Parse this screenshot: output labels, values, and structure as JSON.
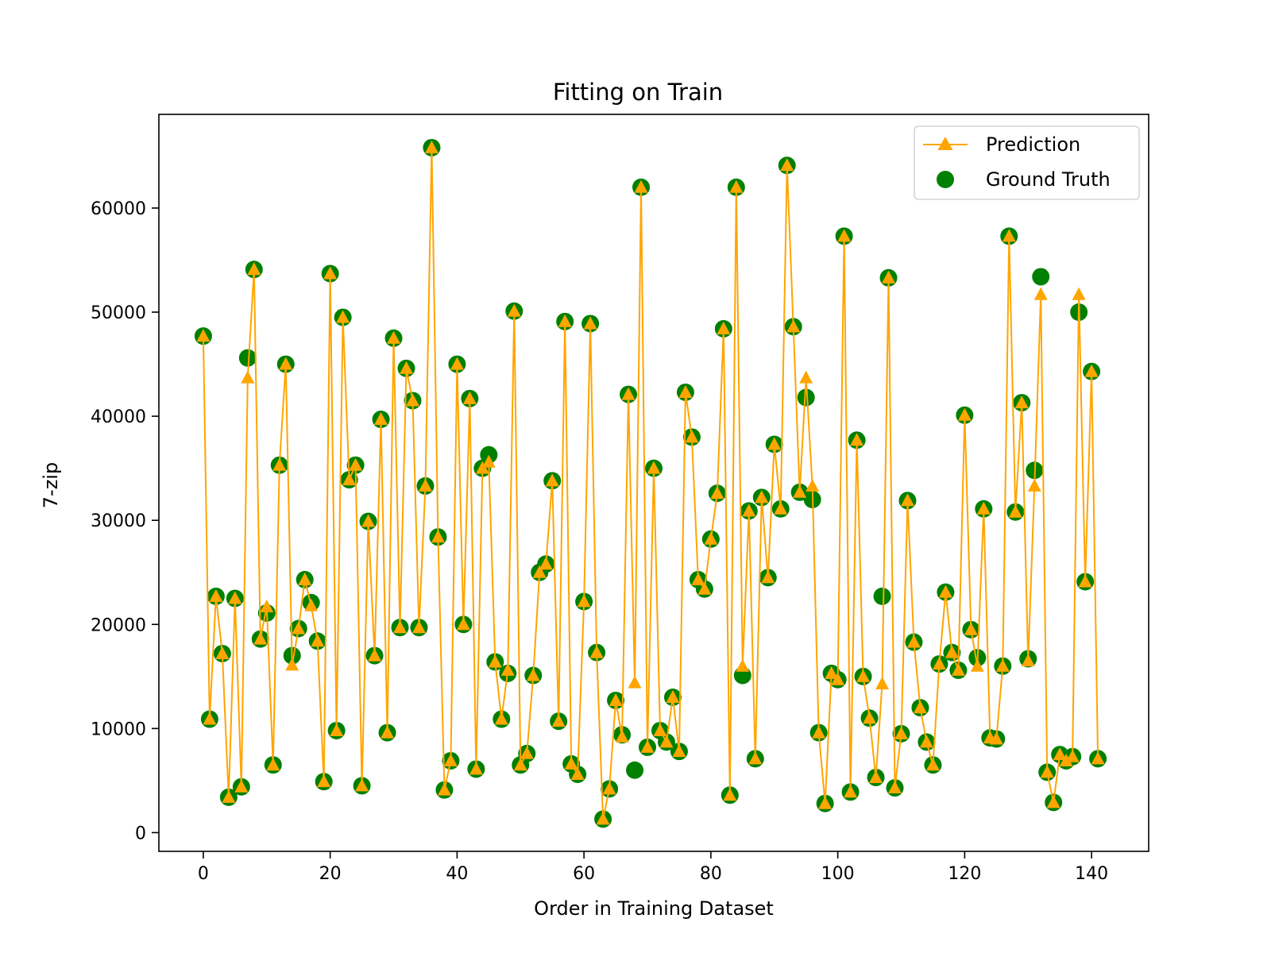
{
  "chart_data": {
    "type": "line",
    "title": "Fitting on Train",
    "xlabel": "Order in Training Dataset",
    "ylabel": "7-zip",
    "xlim": [
      -7,
      149
    ],
    "ylim": [
      -1800,
      69000
    ],
    "xticks": [
      0,
      20,
      40,
      60,
      80,
      100,
      120,
      140
    ],
    "yticks": [
      0,
      10000,
      20000,
      30000,
      40000,
      50000,
      60000
    ],
    "grid": false,
    "legend": "top-right",
    "series": [
      {
        "name": "Prediction",
        "style": "line-triangle",
        "color": "#ffa500",
        "values": [
          47700,
          10900,
          22700,
          17200,
          3400,
          22500,
          4400,
          43700,
          54100,
          18600,
          21700,
          6500,
          35300,
          45000,
          16100,
          19600,
          24300,
          21800,
          18400,
          4900,
          53700,
          9800,
          49500,
          33900,
          35300,
          4500,
          29900,
          17000,
          39700,
          9600,
          47500,
          19700,
          44600,
          41500,
          19700,
          33300,
          65800,
          28400,
          4100,
          6900,
          45000,
          20000,
          41700,
          6100,
          35000,
          35600,
          16400,
          10900,
          15600,
          50100,
          6500,
          7600,
          15100,
          25000,
          25800,
          33800,
          10700,
          49100,
          6600,
          5600,
          22200,
          48900,
          17300,
          1300,
          4200,
          12700,
          9200,
          42100,
          14400,
          62000,
          8200,
          35000,
          9800,
          8700,
          13000,
          7800,
          42300,
          38000,
          24300,
          23400,
          28200,
          32600,
          48400,
          3600,
          62000,
          16000,
          30900,
          7100,
          32200,
          24500,
          37300,
          31100,
          64100,
          48600,
          32700,
          43700,
          33300,
          9600,
          2800,
          15300,
          14700,
          57300,
          3900,
          37700,
          15000,
          11000,
          5300,
          14300,
          53300,
          4300,
          9500,
          31900,
          18300,
          12000,
          8700,
          6500,
          16200,
          23100,
          17300,
          15600,
          40100,
          19500,
          16000,
          31100,
          9100,
          9000,
          16000,
          57300,
          30800,
          41300,
          16500,
          33300,
          51700,
          5800,
          2900,
          7500,
          6900,
          7300,
          51700,
          24100,
          44300,
          7100
        ]
      },
      {
        "name": "Ground Truth",
        "style": "scatter-circle",
        "color": "#008000",
        "values": [
          47700,
          10900,
          22700,
          17200,
          3400,
          22500,
          4400,
          45600,
          54100,
          18600,
          21100,
          6500,
          35300,
          45000,
          17000,
          19600,
          24300,
          22100,
          18400,
          4900,
          53700,
          9800,
          49500,
          33900,
          35300,
          4500,
          29900,
          17000,
          39700,
          9600,
          47500,
          19700,
          44600,
          41500,
          19700,
          33300,
          65800,
          28400,
          4100,
          6900,
          45000,
          20000,
          41700,
          6100,
          35000,
          36300,
          16400,
          10900,
          15300,
          50100,
          6500,
          7600,
          15100,
          25000,
          25800,
          33800,
          10700,
          49100,
          6600,
          5600,
          22200,
          48900,
          17300,
          1300,
          4200,
          12700,
          9400,
          42100,
          6000,
          62000,
          8200,
          35000,
          9800,
          8700,
          13000,
          7800,
          42300,
          38000,
          24300,
          23400,
          28200,
          32600,
          48400,
          3600,
          62000,
          15100,
          30900,
          7100,
          32200,
          24500,
          37300,
          31100,
          64100,
          48600,
          32700,
          41800,
          32000,
          9600,
          2800,
          15300,
          14700,
          57300,
          3900,
          37700,
          15000,
          11000,
          5300,
          22700,
          53300,
          4300,
          9500,
          31900,
          18300,
          12000,
          8700,
          6500,
          16200,
          23100,
          17300,
          15600,
          40100,
          19500,
          16800,
          31100,
          9100,
          9000,
          16000,
          57300,
          30800,
          41300,
          16700,
          34800,
          53400,
          5800,
          2900,
          7500,
          6900,
          7300,
          50000,
          24100,
          44300,
          7100
        ]
      }
    ]
  }
}
